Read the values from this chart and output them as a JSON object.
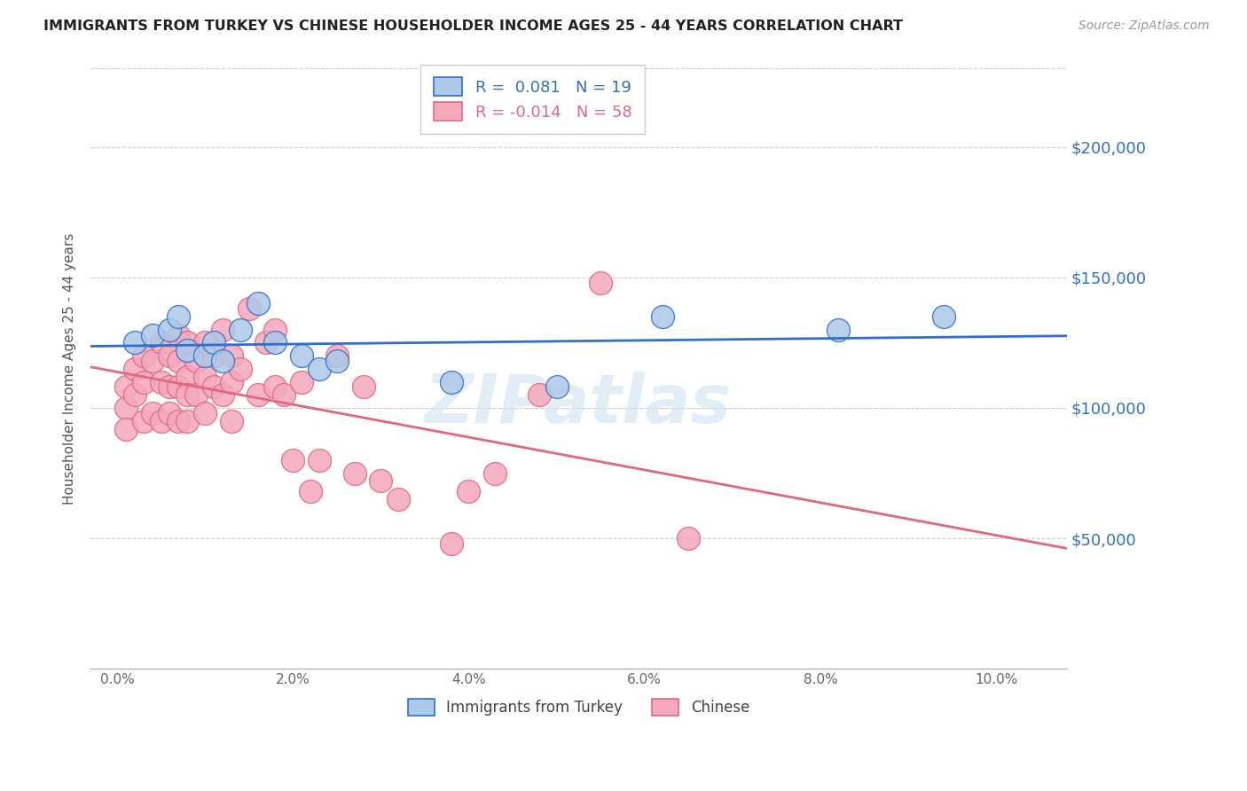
{
  "title": "IMMIGRANTS FROM TURKEY VS CHINESE HOUSEHOLDER INCOME AGES 25 - 44 YEARS CORRELATION CHART",
  "source": "Source: ZipAtlas.com",
  "ylabel": "Householder Income Ages 25 - 44 years",
  "xlabel_ticks": [
    "0.0%",
    "2.0%",
    "4.0%",
    "6.0%",
    "8.0%",
    "10.0%"
  ],
  "xlabel_vals": [
    0.0,
    0.02,
    0.04,
    0.06,
    0.08,
    0.1
  ],
  "ytick_labels": [
    "$50,000",
    "$100,000",
    "$150,000",
    "$200,000"
  ],
  "ytick_vals": [
    50000,
    100000,
    150000,
    200000
  ],
  "ylim": [
    0,
    230000
  ],
  "xlim": [
    -0.003,
    0.108
  ],
  "legend_turkey_r": "0.081",
  "legend_turkey_n": "19",
  "legend_chinese_r": "-0.014",
  "legend_chinese_n": "58",
  "turkey_color": "#adc8e8",
  "chinese_color": "#f5a8bc",
  "turkey_line_color": "#3070c8",
  "chinese_line_color": "#e06880",
  "watermark": "ZIPatlas",
  "turkey_x": [
    0.002,
    0.004,
    0.006,
    0.007,
    0.008,
    0.01,
    0.011,
    0.012,
    0.014,
    0.016,
    0.018,
    0.021,
    0.023,
    0.025,
    0.038,
    0.05,
    0.062,
    0.082,
    0.094
  ],
  "turkey_y": [
    125000,
    128000,
    130000,
    135000,
    122000,
    120000,
    125000,
    118000,
    130000,
    140000,
    125000,
    120000,
    115000,
    118000,
    110000,
    108000,
    135000,
    130000,
    135000
  ],
  "chinese_x": [
    0.001,
    0.001,
    0.001,
    0.002,
    0.002,
    0.003,
    0.003,
    0.003,
    0.004,
    0.004,
    0.005,
    0.005,
    0.005,
    0.006,
    0.006,
    0.006,
    0.007,
    0.007,
    0.007,
    0.007,
    0.008,
    0.008,
    0.008,
    0.008,
    0.009,
    0.009,
    0.01,
    0.01,
    0.01,
    0.011,
    0.011,
    0.012,
    0.012,
    0.013,
    0.013,
    0.013,
    0.014,
    0.015,
    0.016,
    0.017,
    0.018,
    0.018,
    0.019,
    0.02,
    0.021,
    0.022,
    0.023,
    0.025,
    0.027,
    0.028,
    0.03,
    0.032,
    0.038,
    0.04,
    0.043,
    0.048,
    0.055,
    0.065
  ],
  "chinese_y": [
    108000,
    100000,
    92000,
    115000,
    105000,
    120000,
    110000,
    95000,
    118000,
    98000,
    125000,
    110000,
    95000,
    120000,
    108000,
    98000,
    128000,
    118000,
    108000,
    95000,
    125000,
    112000,
    105000,
    95000,
    118000,
    105000,
    125000,
    112000,
    98000,
    120000,
    108000,
    130000,
    105000,
    120000,
    110000,
    95000,
    115000,
    138000,
    105000,
    125000,
    130000,
    108000,
    105000,
    80000,
    110000,
    68000,
    80000,
    120000,
    75000,
    108000,
    72000,
    65000,
    48000,
    68000,
    75000,
    105000,
    148000,
    50000
  ]
}
